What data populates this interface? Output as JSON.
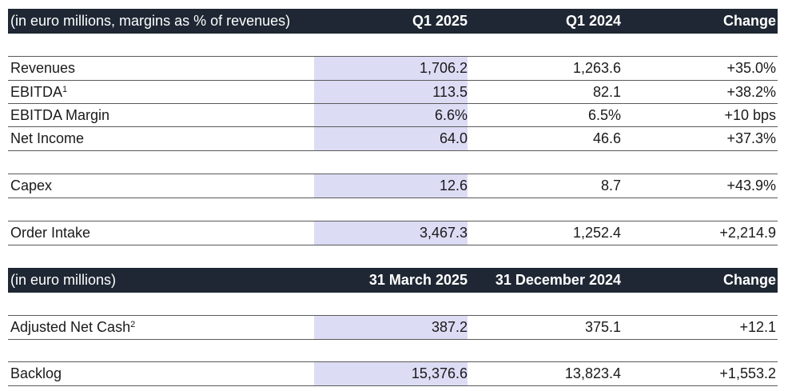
{
  "table1": {
    "header": {
      "label": "(in euro millions, margins as % of revenues)",
      "col1": "Q1 2025",
      "col2": "Q1 2024",
      "col3": "Change"
    },
    "rows": [
      {
        "label": "Revenues",
        "sup": "",
        "col1": "1,706.2",
        "col2": "1,263.6",
        "col3": "+35.0%"
      },
      {
        "label": "EBITDA",
        "sup": "1",
        "col1": "113.5",
        "col2": "82.1",
        "col3": "+38.2%"
      },
      {
        "label": "EBITDA Margin",
        "sup": "",
        "col1": "6.6%",
        "col2": "6.5%",
        "col3": "+10 bps"
      },
      {
        "label": "Net Income",
        "sup": "",
        "col1": "64.0",
        "col2": "46.6",
        "col3": "+37.3%"
      },
      {
        "label": "Capex",
        "sup": "",
        "col1": "12.6",
        "col2": "8.7",
        "col3": "+43.9%"
      },
      {
        "label": "Order Intake",
        "sup": "",
        "col1": "3,467.3",
        "col2": "1,252.4",
        "col3": "+2,214.9"
      }
    ]
  },
  "table2": {
    "header": {
      "label": "(in euro millions)",
      "col1": "31 March 2025",
      "col2": "31 December 2024",
      "col3": "Change"
    },
    "rows": [
      {
        "label": "Adjusted Net Cash",
        "sup": "2",
        "col1": "387.2",
        "col2": "375.1",
        "col3": "+12.1"
      },
      {
        "label": "Backlog",
        "sup": "",
        "col1": "15,376.6",
        "col2": "13,823.4",
        "col3": "+1,553.2"
      }
    ]
  }
}
